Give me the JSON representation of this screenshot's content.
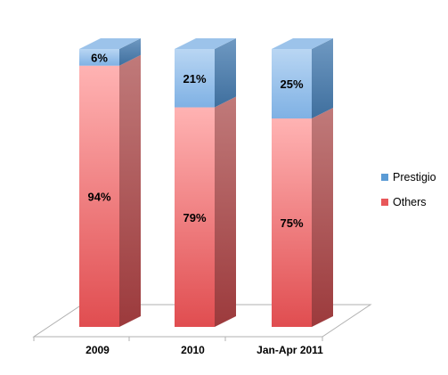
{
  "chart_data": {
    "type": "bar",
    "stacked": true,
    "percent": true,
    "three_d": true,
    "categories": [
      "2009",
      "2010",
      "Jan-Apr 2011"
    ],
    "series": [
      {
        "name": "Others",
        "values": [
          94,
          79,
          75
        ],
        "color": "#e8575a",
        "label_suffix": "%"
      },
      {
        "name": "Prestigio",
        "values": [
          6,
          21,
          25
        ],
        "color": "#5b9bd5",
        "label_suffix": "%"
      }
    ],
    "ylim": [
      0,
      100
    ],
    "grid": false,
    "legend_position": "right"
  }
}
